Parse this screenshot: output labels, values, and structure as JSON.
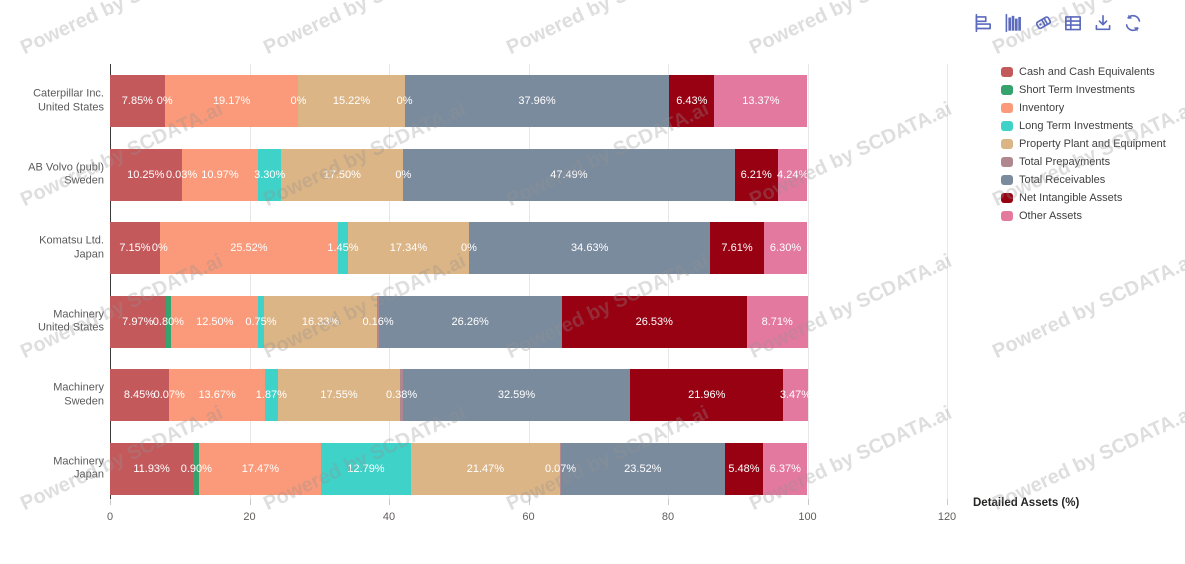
{
  "toolbar": {
    "icons": [
      {
        "name": "horizontal-bar-chart-icon"
      },
      {
        "name": "column-chart-icon"
      },
      {
        "name": "tag-icon"
      },
      {
        "name": "table-icon"
      },
      {
        "name": "download-icon"
      },
      {
        "name": "refresh-icon"
      }
    ],
    "icon_color": "#5b6abc"
  },
  "watermark": {
    "text": "Powered by SCDATA.ai"
  },
  "chart_data": {
    "type": "bar",
    "orientation": "horizontal",
    "stacked": true,
    "title": "",
    "xlabel": "Detailed Assets (%)",
    "ylabel": "",
    "xlim": [
      0,
      120
    ],
    "x_ticks": [
      0,
      20,
      40,
      60,
      80,
      100,
      120
    ],
    "x_tick_labels": [
      "0",
      "20",
      "40",
      "60",
      "80",
      "100",
      "120"
    ],
    "grid": "vertical",
    "legend_position": "top-right",
    "categories": [
      [
        "Caterpillar Inc.",
        "United States"
      ],
      [
        "AB Volvo (publ)",
        "Sweden"
      ],
      [
        "Komatsu Ltd.",
        "Japan"
      ],
      [
        "Machinery",
        "United States"
      ],
      [
        "Machinery",
        "Sweden"
      ],
      [
        "Machinery",
        "Japan"
      ]
    ],
    "series": [
      {
        "name": "Cash and Cash Equivalents",
        "color": "#c4595c",
        "values": [
          7.85,
          10.25,
          7.15,
          7.97,
          8.45,
          11.93
        ],
        "labels": [
          "7.85%",
          "10.25%",
          "7.15%",
          "7.97%",
          "8.45%",
          "11.93%"
        ]
      },
      {
        "name": "Short Term Investments",
        "color": "#36a26d",
        "values": [
          0,
          0.03,
          0,
          0.8,
          0.07,
          0.9
        ],
        "labels": [
          "0%",
          "0.03%",
          "0%",
          "0.80%",
          "0.07%",
          "0.90%"
        ]
      },
      {
        "name": "Inventory",
        "color": "#fa9a7a",
        "values": [
          19.17,
          10.97,
          25.52,
          12.5,
          13.67,
          17.47
        ],
        "labels": [
          "19.17%",
          "10.97%",
          "25.52%",
          "12.50%",
          "13.67%",
          "17.47%"
        ]
      },
      {
        "name": "Long Term Investments",
        "color": "#3fd2c8",
        "values": [
          0,
          3.3,
          1.45,
          0.75,
          1.87,
          12.79
        ],
        "labels": [
          "0%",
          "3.30%",
          "1.45%",
          "0.75%",
          "1.87%",
          "12.79%"
        ]
      },
      {
        "name": "Property Plant and Equipment",
        "color": "#dcb586",
        "values": [
          15.22,
          17.5,
          17.34,
          16.33,
          17.55,
          21.47
        ],
        "labels": [
          "15.22%",
          "17.50%",
          "17.34%",
          "16.33%",
          "17.55%",
          "21.47%"
        ]
      },
      {
        "name": "Total Prepayments",
        "color": "#b0878f",
        "values": [
          0,
          0,
          0,
          0.16,
          0.38,
          0.07
        ],
        "labels": [
          "0%",
          "0%",
          "0%",
          "0.16%",
          "0.38%",
          "0.07%"
        ]
      },
      {
        "name": "Total Receivables",
        "color": "#7b8b9e",
        "values": [
          37.96,
          47.49,
          34.63,
          26.26,
          32.59,
          23.52
        ],
        "labels": [
          "37.96%",
          "47.49%",
          "34.63%",
          "26.26%",
          "32.59%",
          "23.52%"
        ]
      },
      {
        "name": "Net Intangible Assets",
        "color": "#970112",
        "values": [
          6.43,
          6.21,
          7.61,
          26.53,
          21.96,
          5.48
        ],
        "labels": [
          "6.43%",
          "6.21%",
          "7.61%",
          "26.53%",
          "21.96%",
          "5.48%"
        ]
      },
      {
        "name": "Other Assets",
        "color": "#e3799f",
        "values": [
          13.37,
          4.24,
          6.3,
          8.71,
          3.47,
          6.37
        ],
        "labels": [
          "13.37%",
          "4.24%",
          "6.30%",
          "8.71%",
          "3.47%",
          "6.37%"
        ]
      }
    ]
  }
}
